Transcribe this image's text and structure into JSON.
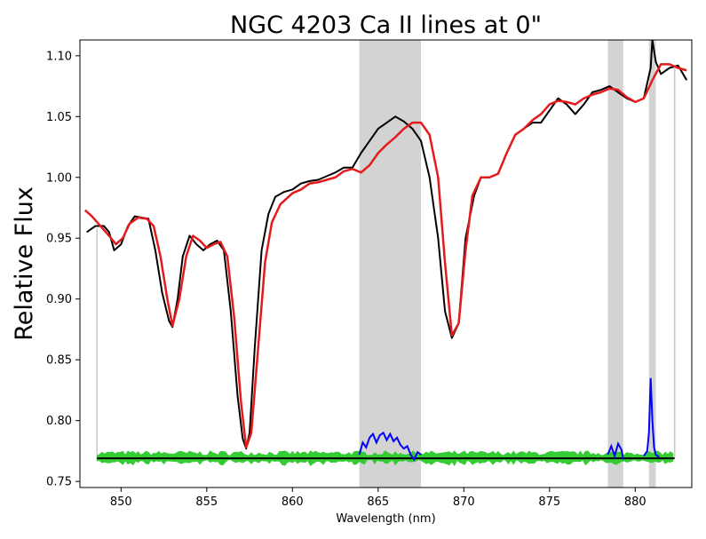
{
  "chart_data": {
    "type": "line",
    "title": "NGC 4203 Ca II lines at 0\"",
    "xlabel": "Wavelength (nm)",
    "ylabel": "Relative Flux",
    "xlim": [
      847.6,
      883.3
    ],
    "ylim": [
      0.745,
      1.113
    ],
    "xticks": [
      850,
      855,
      860,
      865,
      870,
      875,
      880
    ],
    "yticks": [
      0.75,
      0.8,
      0.85,
      0.9,
      0.95,
      1.0,
      1.05,
      1.1
    ],
    "xtick_labels": [
      "850",
      "855",
      "860",
      "865",
      "870",
      "875",
      "880"
    ],
    "ytick_labels": [
      "0.75",
      "0.80",
      "0.85",
      "0.90",
      "0.95",
      "1.00",
      "1.05",
      "1.10"
    ],
    "grid": false,
    "shaded_regions": [
      {
        "x0": 863.9,
        "x1": 867.5,
        "color": "#d3d3d3"
      },
      {
        "x0": 878.4,
        "x1": 879.3,
        "color": "#d3d3d3"
      },
      {
        "x0": 880.8,
        "x1": 881.2,
        "color": "#d3d3d3"
      }
    ],
    "vertical_lines": [
      {
        "x": 848.6,
        "y0": 0.769,
        "y1": 0.958,
        "color": "#c8c8c8"
      },
      {
        "x": 882.3,
        "y0": 0.769,
        "y1": 1.09,
        "color": "#c8c8c8"
      }
    ],
    "series": [
      {
        "color": "#000000",
        "x": [
          848.0,
          848.5,
          849.0,
          849.3,
          849.6,
          850.0,
          850.4,
          850.8,
          851.2,
          851.6,
          852.0,
          852.4,
          852.8,
          853.0,
          853.3,
          853.6,
          854.0,
          854.4,
          854.8,
          855.2,
          855.6,
          856.0,
          856.4,
          856.8,
          857.1,
          857.3,
          857.5,
          857.8,
          858.2,
          858.6,
          859.0,
          859.5,
          860.0,
          860.5,
          861.0,
          861.5,
          862.0,
          862.5,
          863.0,
          863.5,
          864.0,
          864.5,
          865.0,
          865.5,
          866.0,
          866.5,
          867.0,
          867.5,
          868.0,
          868.5,
          868.9,
          869.3,
          869.7,
          870.1,
          870.6,
          871.0,
          871.5,
          872.0,
          872.5,
          873.0,
          873.5,
          874.0,
          874.5,
          875.0,
          875.5,
          876.0,
          876.5,
          877.0,
          877.5,
          878.0,
          878.5,
          879.0,
          879.5,
          880.0,
          880.5,
          880.9,
          881.0,
          881.2,
          881.5,
          882.0,
          882.5,
          883.0
        ],
        "y": [
          0.955,
          0.96,
          0.96,
          0.955,
          0.94,
          0.945,
          0.96,
          0.968,
          0.967,
          0.966,
          0.94,
          0.905,
          0.882,
          0.877,
          0.9,
          0.935,
          0.952,
          0.945,
          0.94,
          0.945,
          0.948,
          0.94,
          0.89,
          0.82,
          0.785,
          0.777,
          0.79,
          0.86,
          0.94,
          0.97,
          0.984,
          0.988,
          0.99,
          0.995,
          0.997,
          0.998,
          1.001,
          1.004,
          1.008,
          1.008,
          1.02,
          1.03,
          1.04,
          1.045,
          1.05,
          1.046,
          1.04,
          1.03,
          1.0,
          0.95,
          0.89,
          0.868,
          0.88,
          0.95,
          0.985,
          1.0,
          1.0,
          1.003,
          1.02,
          1.035,
          1.04,
          1.045,
          1.045,
          1.055,
          1.065,
          1.06,
          1.052,
          1.06,
          1.07,
          1.072,
          1.075,
          1.07,
          1.065,
          1.062,
          1.065,
          1.09,
          1.113,
          1.095,
          1.085,
          1.09,
          1.092,
          1.08
        ]
      },
      {
        "color": "#e41a1c",
        "x": [
          847.9,
          848.3,
          848.8,
          849.3,
          849.7,
          850.1,
          850.5,
          851.0,
          851.5,
          851.9,
          852.3,
          852.7,
          853.0,
          853.4,
          853.8,
          854.2,
          854.6,
          855.0,
          855.4,
          855.8,
          856.2,
          856.6,
          857.0,
          857.3,
          857.6,
          858.0,
          858.4,
          858.8,
          859.3,
          860.0,
          860.5,
          861.0,
          861.5,
          862.0,
          862.5,
          863.0,
          863.5,
          864.0,
          864.5,
          865.0,
          865.5,
          866.0,
          866.5,
          867.0,
          867.5,
          868.0,
          868.5,
          868.9,
          869.3,
          869.7,
          870.1,
          870.5,
          871.0,
          871.5,
          872.0,
          872.5,
          873.0,
          873.5,
          874.0,
          874.5,
          875.0,
          875.5,
          876.0,
          876.5,
          877.0,
          877.5,
          878.0,
          878.5,
          879.0,
          879.5,
          880.0,
          880.5,
          881.0,
          881.5,
          882.0,
          882.5,
          883.0
        ],
        "y": [
          0.973,
          0.968,
          0.96,
          0.952,
          0.945,
          0.95,
          0.962,
          0.967,
          0.966,
          0.96,
          0.935,
          0.9,
          0.878,
          0.9,
          0.935,
          0.952,
          0.948,
          0.942,
          0.945,
          0.947,
          0.935,
          0.885,
          0.815,
          0.778,
          0.79,
          0.86,
          0.93,
          0.963,
          0.978,
          0.987,
          0.99,
          0.995,
          0.996,
          0.998,
          1.0,
          1.005,
          1.007,
          1.004,
          1.01,
          1.02,
          1.027,
          1.033,
          1.04,
          1.045,
          1.045,
          1.035,
          1.0,
          0.93,
          0.87,
          0.88,
          0.94,
          0.985,
          1.0,
          1.0,
          1.003,
          1.02,
          1.035,
          1.04,
          1.047,
          1.052,
          1.06,
          1.063,
          1.062,
          1.06,
          1.065,
          1.068,
          1.07,
          1.073,
          1.072,
          1.066,
          1.062,
          1.065,
          1.08,
          1.093,
          1.093,
          1.09,
          1.088
        ]
      }
    ],
    "residual_baseline": {
      "color": "#000000",
      "x0": 848.6,
      "x1": 882.3,
      "y": 0.769
    },
    "residuals": {
      "colors": {
        "fit": "#33cc33",
        "masked": "#0000ff"
      },
      "x_start": 848.6,
      "x_end": 882.3,
      "y_center": 0.769,
      "amplitude": 0.006,
      "masked_series": [
        {
          "x": [
            863.9,
            864.1,
            864.3,
            864.5,
            864.7,
            864.9,
            865.1,
            865.3,
            865.5,
            865.7,
            865.9,
            866.1,
            866.3,
            866.5,
            866.7,
            866.9,
            867.1,
            867.3,
            867.5
          ],
          "y": [
            0.772,
            0.782,
            0.778,
            0.786,
            0.789,
            0.782,
            0.788,
            0.79,
            0.784,
            0.789,
            0.783,
            0.786,
            0.78,
            0.777,
            0.779,
            0.772,
            0.768,
            0.774,
            0.772
          ]
        },
        {
          "x": [
            878.4,
            878.6,
            878.8,
            879.0,
            879.2,
            879.3
          ],
          "y": [
            0.772,
            0.779,
            0.771,
            0.781,
            0.776,
            0.768
          ]
        },
        {
          "x": [
            880.5,
            880.7,
            880.8,
            880.9,
            881.0,
            881.1,
            881.2,
            881.4
          ],
          "y": [
            0.771,
            0.775,
            0.79,
            0.835,
            0.8,
            0.778,
            0.772,
            0.77
          ]
        }
      ]
    }
  }
}
